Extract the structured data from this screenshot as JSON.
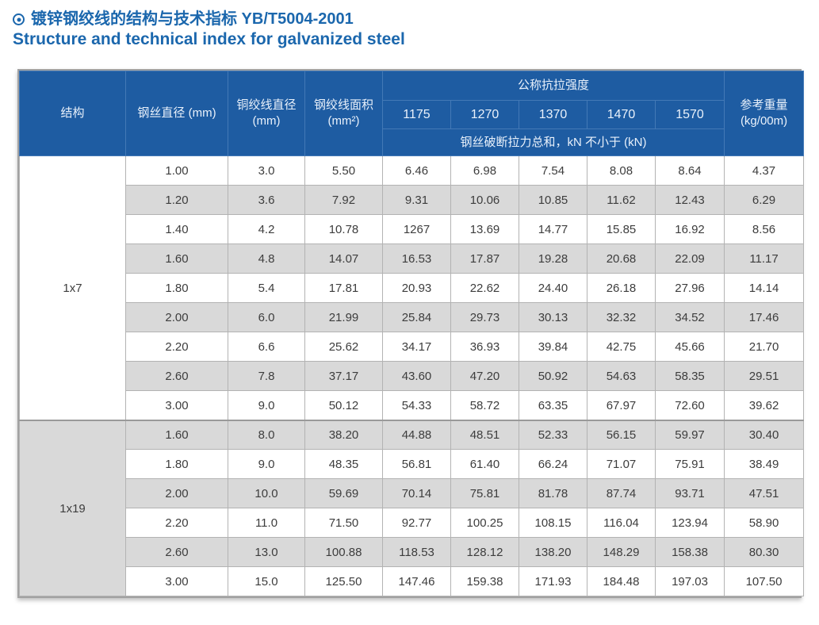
{
  "page": {
    "title_zh": "镀锌钢绞线的结构与技术指标 YB/T5004-2001",
    "title_en": "Structure and technical index for galvanized steel",
    "bullet_icon": "circled-dot-icon"
  },
  "colors": {
    "header_bg": "#1e5ca2",
    "header_divider": "#4379b6",
    "header_text": "#e9f1fb",
    "title_text": "#1b67ad",
    "row_alt_bg": "#d9d9d9",
    "cell_border": "#b3b3b3",
    "cell_text": "#3d3d3d",
    "outer_border": "#a2a2a2"
  },
  "table": {
    "header": {
      "structure": "结构",
      "wire_diameter": "钢丝直径 (mm)",
      "strand_diameter": "铜绞线直径 (mm)",
      "strand_area": "钢绞线面积 (mm²)",
      "tensile_group": "公称抗拉强度",
      "tensile_grades": [
        "1175",
        "1270",
        "1370",
        "1470",
        "1570"
      ],
      "tensile_note": "钢丝破断拉力总和，kN 不小于 (kN)",
      "ref_weight": "参考重量 (kg/00m)"
    },
    "groups": [
      {
        "structure": "1x7",
        "rows": [
          [
            "1.00",
            "3.0",
            "5.50",
            "6.46",
            "6.98",
            "7.54",
            "8.08",
            "8.64",
            "4.37"
          ],
          [
            "1.20",
            "3.6",
            "7.92",
            "9.31",
            "10.06",
            "10.85",
            "11.62",
            "12.43",
            "6.29"
          ],
          [
            "1.40",
            "4.2",
            "10.78",
            "1267",
            "13.69",
            "14.77",
            "15.85",
            "16.92",
            "8.56"
          ],
          [
            "1.60",
            "4.8",
            "14.07",
            "16.53",
            "17.87",
            "19.28",
            "20.68",
            "22.09",
            "11.17"
          ],
          [
            "1.80",
            "5.4",
            "17.81",
            "20.93",
            "22.62",
            "24.40",
            "26.18",
            "27.96",
            "14.14"
          ],
          [
            "2.00",
            "6.0",
            "21.99",
            "25.84",
            "29.73",
            "30.13",
            "32.32",
            "34.52",
            "17.46"
          ],
          [
            "2.20",
            "6.6",
            "25.62",
            "34.17",
            "36.93",
            "39.84",
            "42.75",
            "45.66",
            "21.70"
          ],
          [
            "2.60",
            "7.8",
            "37.17",
            "43.60",
            "47.20",
            "50.92",
            "54.63",
            "58.35",
            "29.51"
          ],
          [
            "3.00",
            "9.0",
            "50.12",
            "54.33",
            "58.72",
            "63.35",
            "67.97",
            "72.60",
            "39.62"
          ]
        ]
      },
      {
        "structure": "1x19",
        "rows": [
          [
            "1.60",
            "8.0",
            "38.20",
            "44.88",
            "48.51",
            "52.33",
            "56.15",
            "59.97",
            "30.40"
          ],
          [
            "1.80",
            "9.0",
            "48.35",
            "56.81",
            "61.40",
            "66.24",
            "71.07",
            "75.91",
            "38.49"
          ],
          [
            "2.00",
            "10.0",
            "59.69",
            "70.14",
            "75.81",
            "81.78",
            "87.74",
            "93.71",
            "47.51"
          ],
          [
            "2.20",
            "11.0",
            "71.50",
            "92.77",
            "100.25",
            "108.15",
            "116.04",
            "123.94",
            "58.90"
          ],
          [
            "2.60",
            "13.0",
            "100.88",
            "118.53",
            "128.12",
            "138.20",
            "148.29",
            "158.38",
            "80.30"
          ],
          [
            "3.00",
            "15.0",
            "125.50",
            "147.46",
            "159.38",
            "171.93",
            "184.48",
            "197.03",
            "107.50"
          ]
        ]
      }
    ]
  }
}
